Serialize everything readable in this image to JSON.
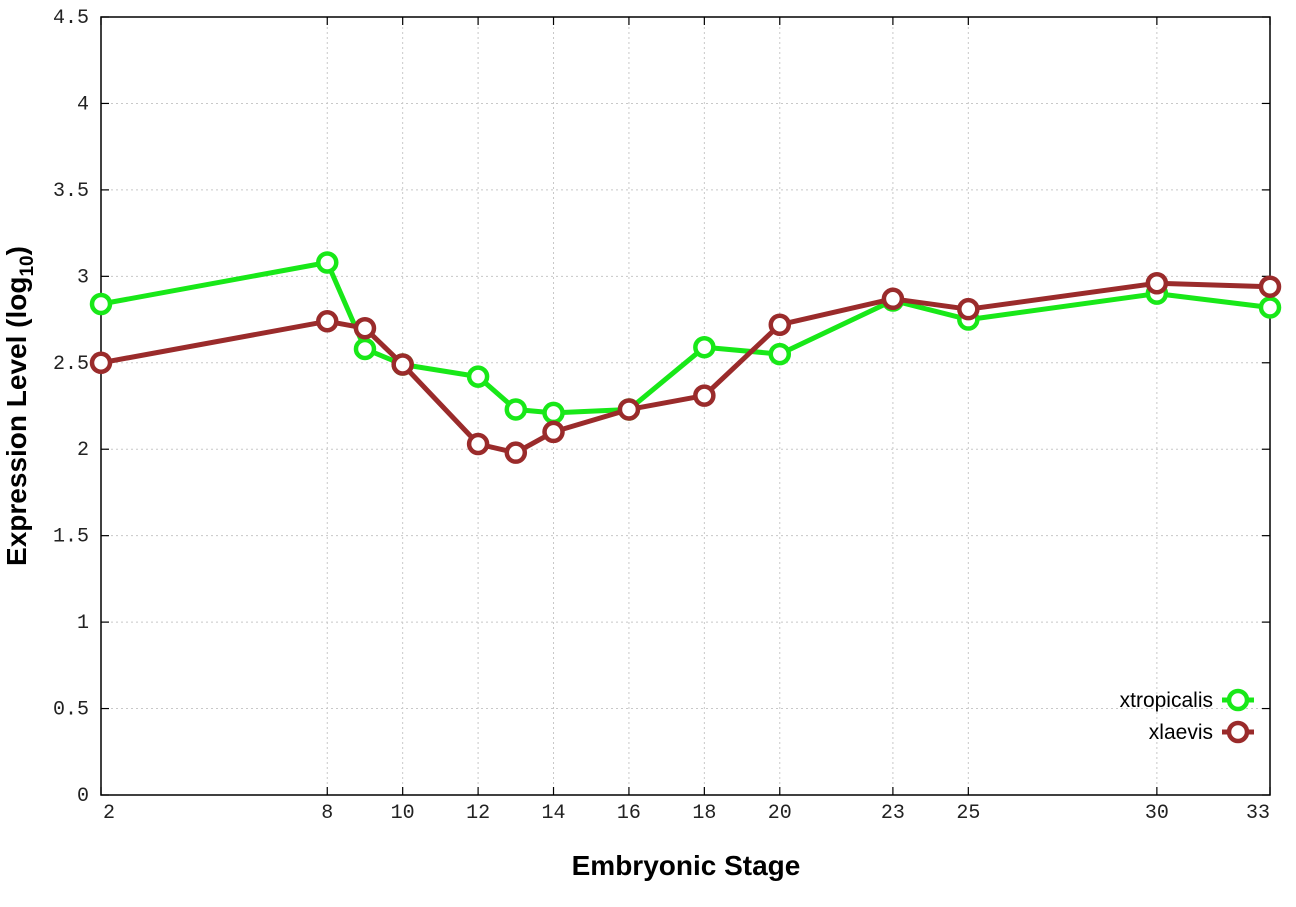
{
  "chart_data": {
    "type": "line",
    "title": "",
    "xlabel": "Embryonic Stage",
    "ylabel_main": "Expression Level (log",
    "ylabel_sub": "10",
    "ylabel_close": ")",
    "x_tick_labels": [
      "2",
      "8",
      "10",
      "12",
      "14",
      "16",
      "18",
      "20",
      "23",
      "25",
      "30",
      "33"
    ],
    "y_tick_labels": [
      "0",
      "0.5",
      "1",
      "1.5",
      "2",
      "2.5",
      "3",
      "3.5",
      "4",
      "4.5"
    ],
    "ylim": [
      0,
      4.5
    ],
    "grid": true,
    "legend_position": "bottom-right",
    "series": [
      {
        "name": "xtropicalis",
        "color": "#18e818",
        "x": [
          2,
          8,
          9,
          10,
          12,
          13,
          14,
          16,
          18,
          20,
          23,
          25,
          30,
          33
        ],
        "values": [
          2.84,
          3.08,
          2.58,
          2.49,
          2.42,
          2.23,
          2.21,
          2.23,
          2.59,
          2.55,
          2.86,
          2.75,
          2.9,
          2.82
        ]
      },
      {
        "name": "xlaevis",
        "color": "#9a2b2b",
        "x": [
          2,
          8,
          9,
          10,
          12,
          13,
          14,
          16,
          18,
          20,
          23,
          25,
          30,
          33
        ],
        "values": [
          2.5,
          2.74,
          2.7,
          2.49,
          2.03,
          1.98,
          2.1,
          2.23,
          2.31,
          2.72,
          2.87,
          2.81,
          2.96,
          2.94
        ]
      }
    ]
  }
}
